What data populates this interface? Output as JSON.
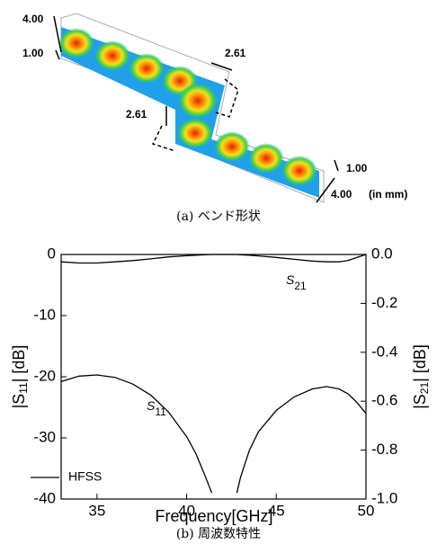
{
  "figure_a": {
    "dimensions": [
      "4.00",
      "1.00",
      "2.61",
      "2.61",
      "1.00",
      "4.00"
    ],
    "unit_note": "(in mm)",
    "caption": "(a) ベンド形状"
  },
  "chart_data": {
    "type": "line",
    "x_label": "Frequency[GHz]",
    "y_label": [
      "|S",
      "11",
      "| [dB]"
    ],
    "y2_label": [
      "|S",
      "21",
      "| [dB]"
    ],
    "x": [
      33,
      34,
      35,
      36,
      37,
      38,
      39,
      40,
      40.5,
      41,
      41.4,
      41.7,
      42.5,
      42.8,
      43,
      43.5,
      44,
      45,
      46,
      47,
      47.8,
      48.5,
      49,
      49.5,
      50
    ],
    "series": [
      {
        "name": "HFSS",
        "color": "#000000",
        "values": [
          -20.8,
          -19.9,
          -19.7,
          -20.1,
          -21.2,
          -23.0,
          -25.8,
          -29.8,
          -32.5,
          -36,
          -39,
          null,
          null,
          -39,
          -36.5,
          -32,
          -29,
          -25.5,
          -23.3,
          -22,
          -21.6,
          -22,
          -22.8,
          -24.2,
          -26
        ]
      },
      {
        "name": "HFSS",
        "color": "#000000",
        "axis": "y2",
        "values": [
          -0.03,
          -0.035,
          -0.035,
          -0.03,
          -0.025,
          -0.018,
          -0.01,
          -0.005,
          -0.003,
          -0.001,
          0,
          0,
          0,
          0,
          -0.001,
          -0.003,
          -0.006,
          -0.012,
          -0.02,
          -0.027,
          -0.03,
          -0.03,
          -0.025,
          -0.012,
          0
        ]
      }
    ],
    "annotations": [
      {
        "text": "S",
        "sub": "11"
      },
      {
        "text": "S",
        "sub": "21"
      }
    ],
    "xlim": [
      33,
      50
    ],
    "xticks": [
      35,
      40,
      45,
      50
    ],
    "ylim": [
      -40,
      0
    ],
    "yticks": [
      0,
      -10,
      -20,
      -30,
      -40
    ],
    "y2lim": [
      -1,
      0
    ],
    "y2ticks": [
      {
        "value": 0,
        "label": "0.0"
      },
      -0.2,
      -0.4,
      -0.6,
      -0.8,
      {
        "value": -1,
        "label": "-1.0"
      }
    ],
    "grid": false,
    "legend_position": "lower left",
    "caption": "(b) 周波数特性"
  }
}
